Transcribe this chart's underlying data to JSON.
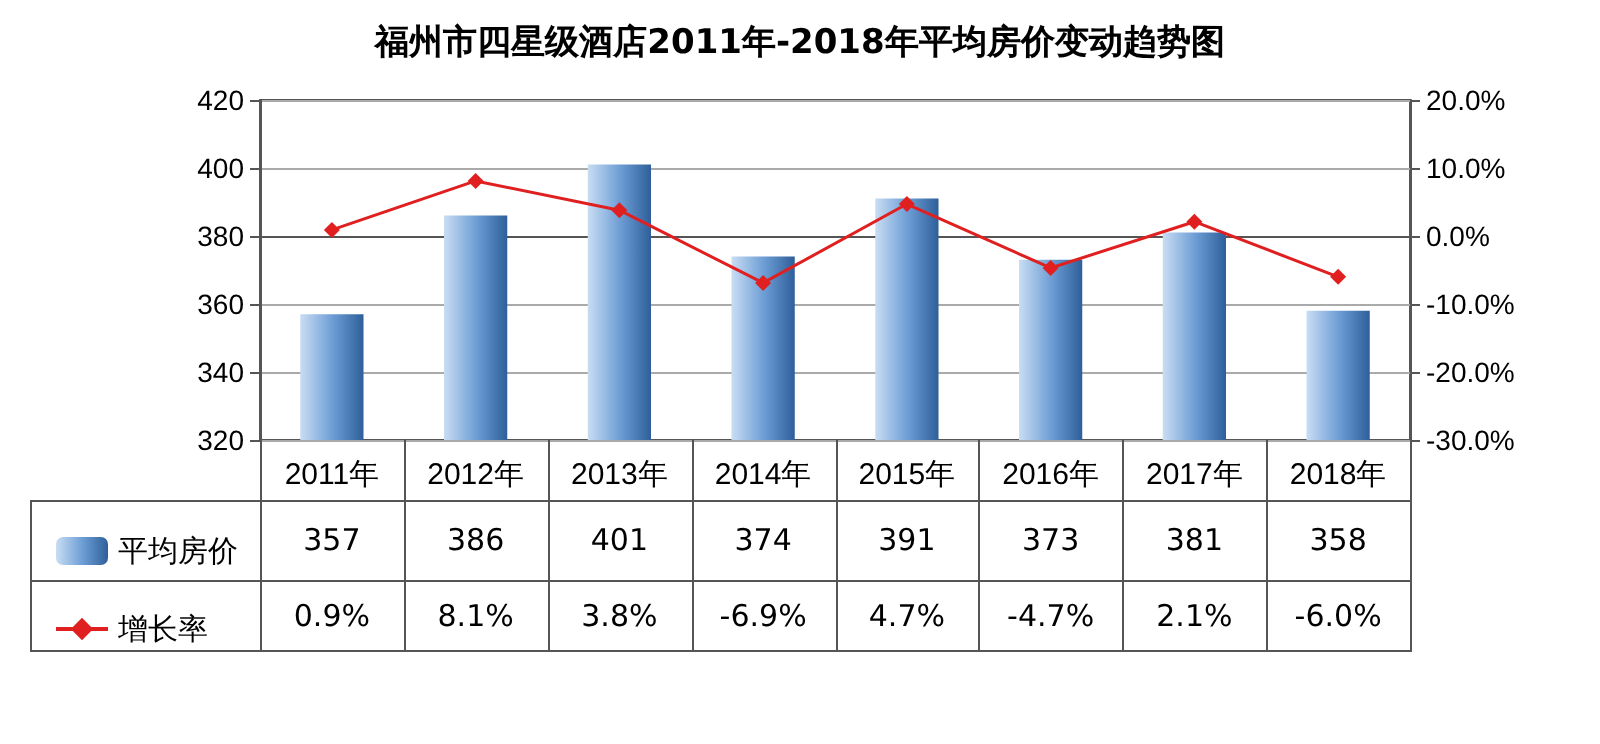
{
  "chart_data": {
    "type": "bar",
    "title": "福州市四星级酒店2011年-2018年平均房价变动趋势图",
    "categories": [
      "2011年",
      "2012年",
      "2013年",
      "2014年",
      "2015年",
      "2016年",
      "2017年",
      "2018年"
    ],
    "series": [
      {
        "name": "平均房价",
        "color": "#6f9fd6",
        "values": [
          357,
          386,
          401,
          374,
          391,
          373,
          381,
          358
        ],
        "value_labels": [
          "357",
          "386",
          "401",
          "374",
          "391",
          "373",
          "381",
          "358"
        ]
      },
      {
        "name": "增长率",
        "type": "line",
        "axis": "y2",
        "color": "#e02020",
        "marker": "diamond",
        "values": [
          0.9,
          8.1,
          3.8,
          -6.9,
          4.7,
          -4.7,
          2.1,
          -6.0
        ],
        "value_labels": [
          "0.9%",
          "8.1%",
          "3.8%",
          "-6.9%",
          "4.7%",
          "-4.7%",
          "2.1%",
          "-6.0%"
        ]
      }
    ],
    "ylim": [
      320,
      420
    ],
    "yticks": [
      320,
      340,
      360,
      380,
      400,
      420
    ],
    "y2lim": [
      -30,
      20
    ],
    "y2ticks": [
      {
        "value": -30,
        "label": "-30.0%"
      },
      {
        "value": -20,
        "label": "-20.0%"
      },
      {
        "value": -10,
        "label": "-10.0%"
      },
      {
        "value": 0,
        "label": "0.0%"
      },
      {
        "value": 10,
        "label": "10.0%"
      },
      {
        "value": 20,
        "label": "20.0%"
      }
    ],
    "grid": "y",
    "legend": "bottom left"
  }
}
